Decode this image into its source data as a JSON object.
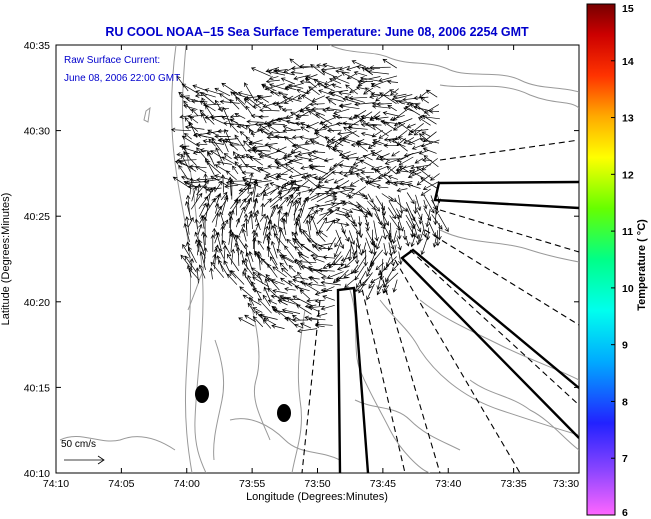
{
  "title": "RU COOL  NOAA–15  Sea Surface Temperature:  June 08, 2006 2254 GMT",
  "annotation": {
    "line1": "Raw Surface Current:",
    "line2": "June 08, 2006 22:00 GMT"
  },
  "scale_label": "50 cm/s",
  "axes": {
    "xlabel": "Longitude (Degrees:Minutes)",
    "ylabel": "Latitude (Degrees:Minutes)",
    "xticks": [
      "74:10",
      "74:05",
      "74:00",
      "73:55",
      "73:50",
      "73:45",
      "73:40",
      "73:35",
      "73:30"
    ],
    "yticks": [
      "40:35",
      "40:30",
      "40:25",
      "40:20",
      "40:15",
      "40:10"
    ]
  },
  "colorbar": {
    "label": "Temperature ( °C)",
    "ticks": [
      "15",
      "14",
      "13",
      "12",
      "11",
      "10",
      "9",
      "8",
      "7",
      "6"
    ],
    "range": [
      6,
      15
    ],
    "colors": [
      "#ff66ff",
      "#8844ff",
      "#2222ff",
      "#00aaff",
      "#00ffee",
      "#00ff88",
      "#66ff00",
      "#ffff00",
      "#ffaa00",
      "#ff3300",
      "#cc0000",
      "#770000"
    ]
  },
  "colors": {
    "title": "#0000cc",
    "annotation": "#0000cc",
    "land_contours": "#999999",
    "vectors": "#000000"
  }
}
